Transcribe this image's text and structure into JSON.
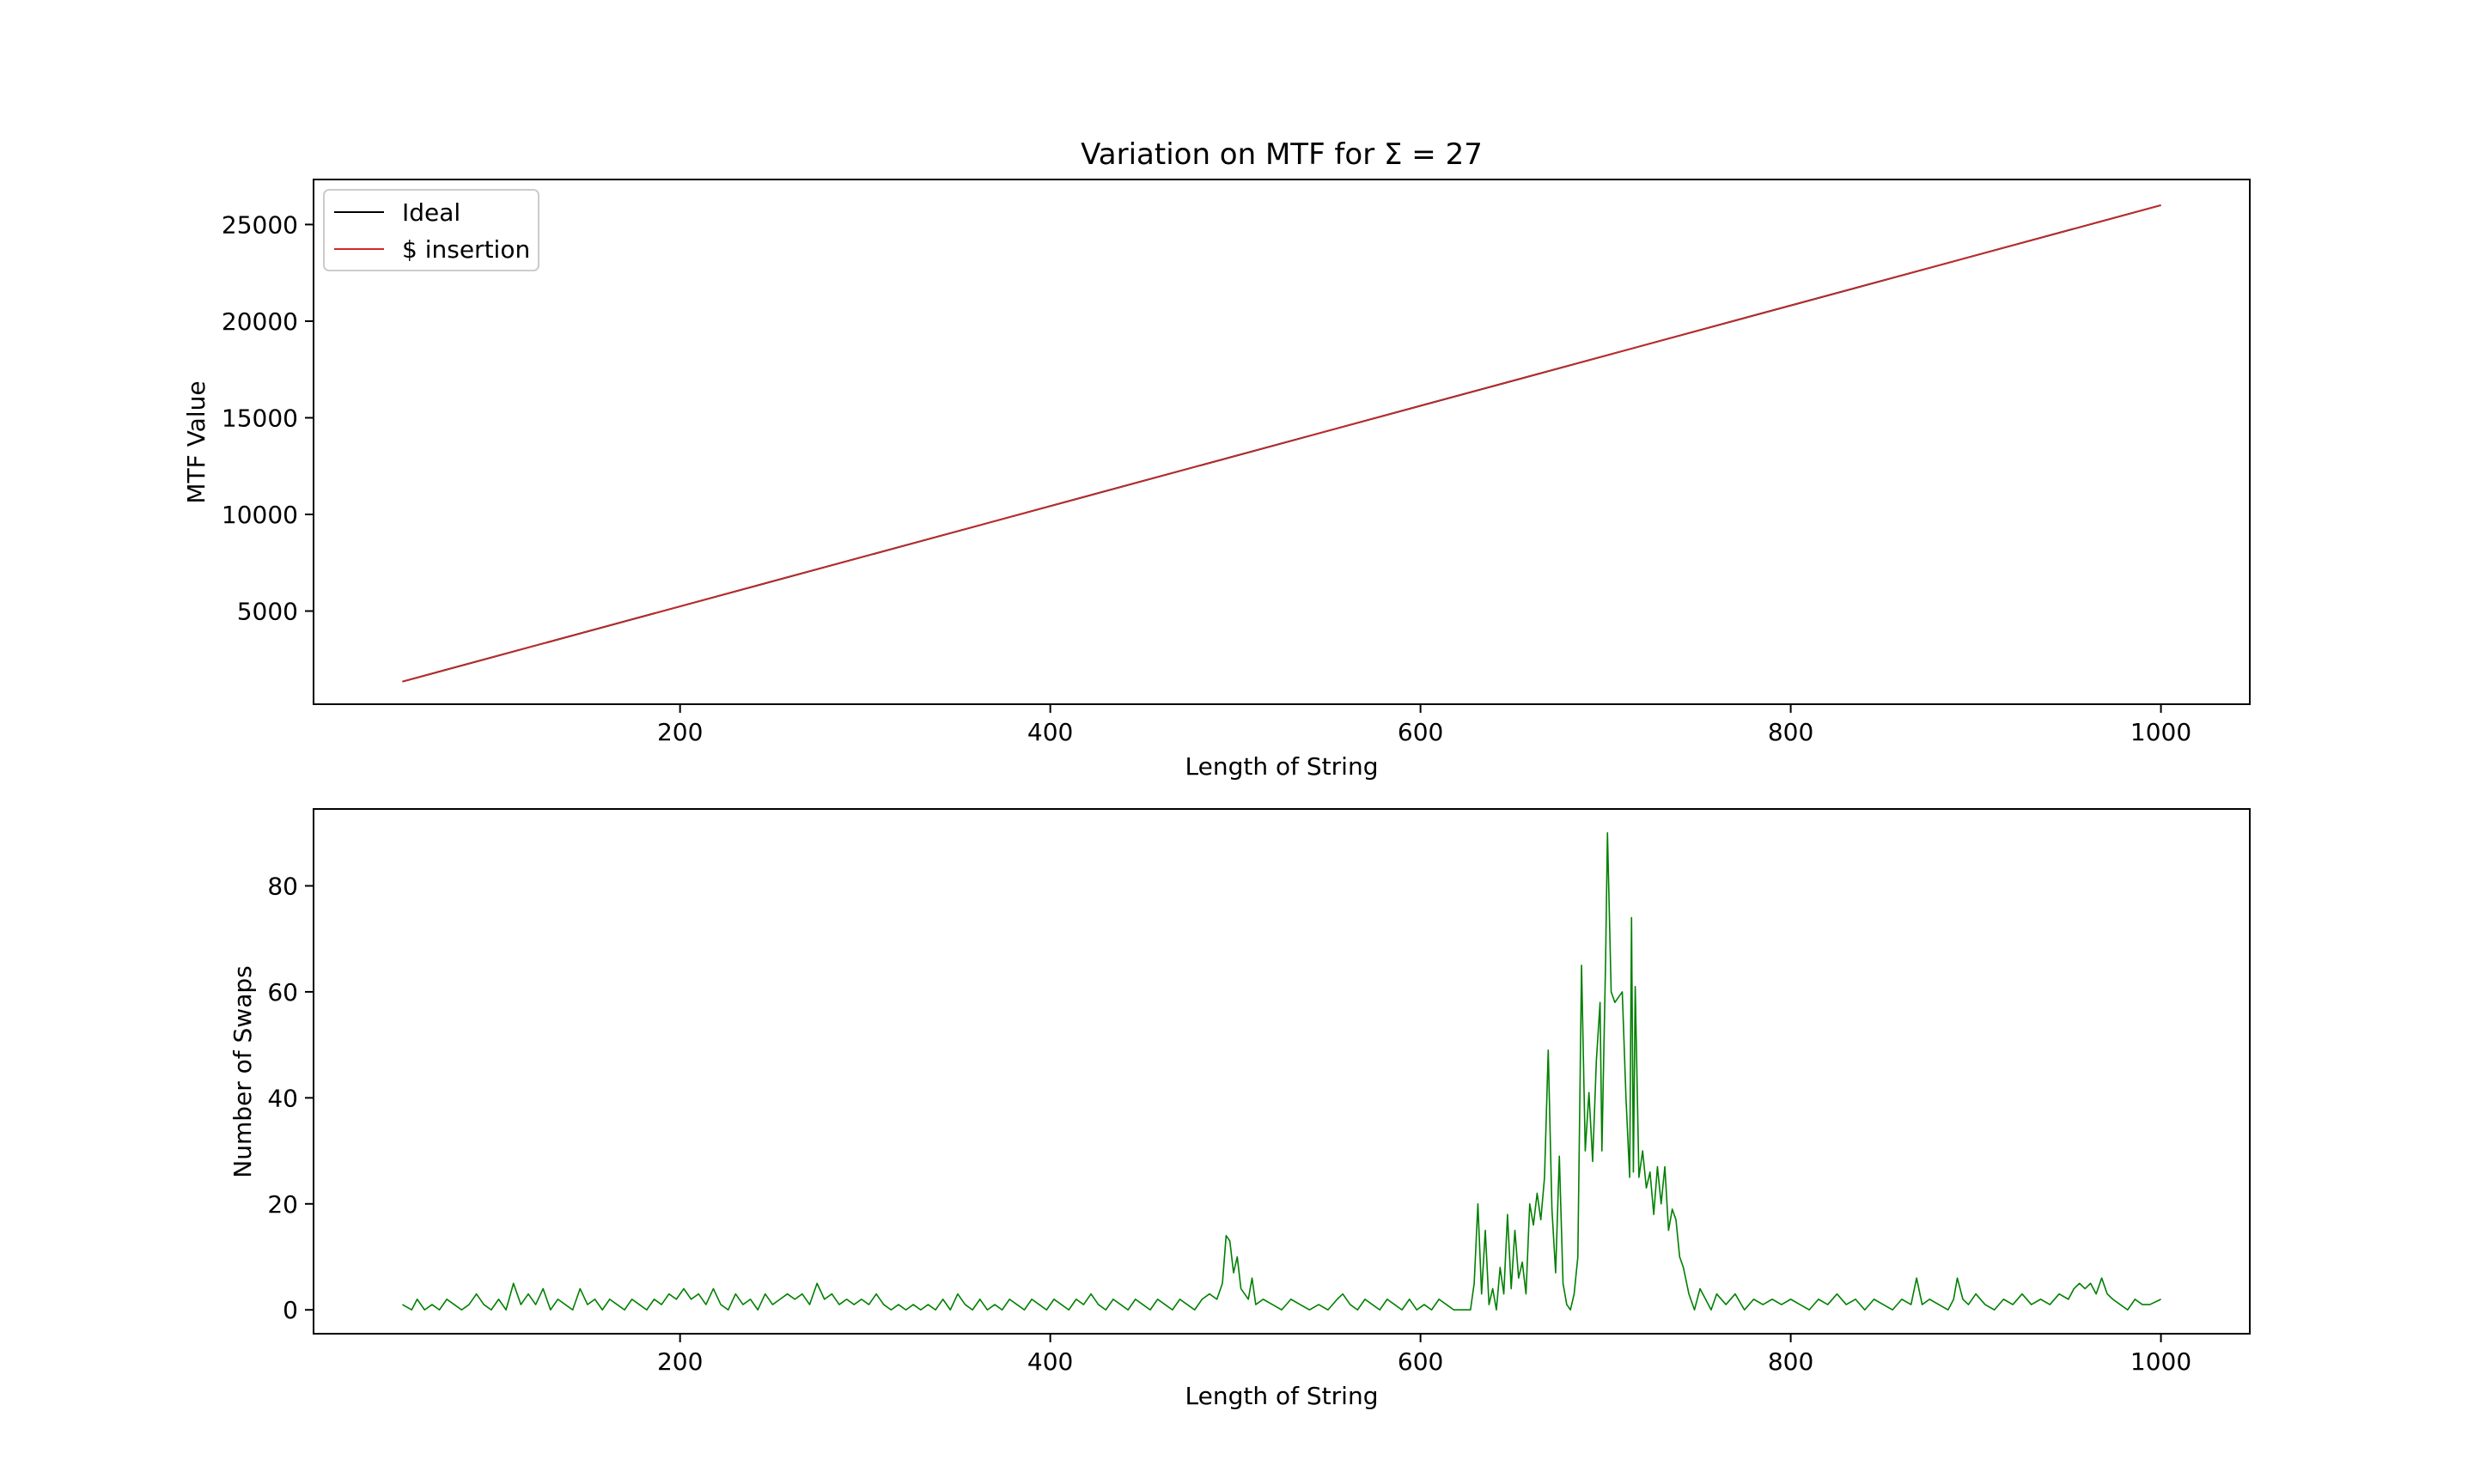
{
  "chart_data": [
    {
      "type": "line",
      "title": "Variation on MTF for Σ = 27",
      "xlabel": "Length of String",
      "ylabel": "MTF Value",
      "xlim": [
        2,
        1048
      ],
      "ylim": [
        180,
        27330
      ],
      "xticks": [
        200,
        400,
        600,
        800,
        1000
      ],
      "yticks": [
        5000,
        10000,
        15000,
        20000,
        25000
      ],
      "legend": "top-left",
      "series": [
        {
          "name": "Ideal",
          "color": "#000000",
          "x": [
            50,
            1000
          ],
          "y": [
            1350,
            26000
          ]
        },
        {
          "name": "$ insertion",
          "color": "#d62728",
          "x": [
            50,
            1000
          ],
          "y": [
            1350,
            26000
          ]
        }
      ]
    },
    {
      "type": "line",
      "title": "",
      "xlabel": "Length of String",
      "ylabel": "Number of Swaps",
      "xlim": [
        2,
        1048
      ],
      "ylim": [
        -4.5,
        94.5
      ],
      "xticks": [
        200,
        400,
        600,
        800,
        1000
      ],
      "yticks": [
        0,
        20,
        40,
        60,
        80
      ],
      "series": [
        {
          "name": "",
          "color": "#008000",
          "points": [
            [
              50,
              1
            ],
            [
              55,
              0
            ],
            [
              58,
              2
            ],
            [
              62,
              0
            ],
            [
              66,
              1
            ],
            [
              70,
              0
            ],
            [
              74,
              2
            ],
            [
              78,
              1
            ],
            [
              82,
              0
            ],
            [
              86,
              1
            ],
            [
              90,
              3
            ],
            [
              94,
              1
            ],
            [
              98,
              0
            ],
            [
              102,
              2
            ],
            [
              106,
              0
            ],
            [
              110,
              5
            ],
            [
              114,
              1
            ],
            [
              118,
              3
            ],
            [
              122,
              1
            ],
            [
              126,
              4
            ],
            [
              130,
              0
            ],
            [
              134,
              2
            ],
            [
              138,
              1
            ],
            [
              142,
              0
            ],
            [
              146,
              4
            ],
            [
              150,
              1
            ],
            [
              154,
              2
            ],
            [
              158,
              0
            ],
            [
              162,
              2
            ],
            [
              166,
              1
            ],
            [
              170,
              0
            ],
            [
              174,
              2
            ],
            [
              178,
              1
            ],
            [
              182,
              0
            ],
            [
              186,
              2
            ],
            [
              190,
              1
            ],
            [
              194,
              3
            ],
            [
              198,
              2
            ],
            [
              202,
              4
            ],
            [
              206,
              2
            ],
            [
              210,
              3
            ],
            [
              214,
              1
            ],
            [
              218,
              4
            ],
            [
              222,
              1
            ],
            [
              226,
              0
            ],
            [
              230,
              3
            ],
            [
              234,
              1
            ],
            [
              238,
              2
            ],
            [
              242,
              0
            ],
            [
              246,
              3
            ],
            [
              250,
              1
            ],
            [
              254,
              2
            ],
            [
              258,
              3
            ],
            [
              262,
              2
            ],
            [
              266,
              3
            ],
            [
              270,
              1
            ],
            [
              274,
              5
            ],
            [
              278,
              2
            ],
            [
              282,
              3
            ],
            [
              286,
              1
            ],
            [
              290,
              2
            ],
            [
              294,
              1
            ],
            [
              298,
              2
            ],
            [
              302,
              1
            ],
            [
              306,
              3
            ],
            [
              310,
              1
            ],
            [
              314,
              0
            ],
            [
              318,
              1
            ],
            [
              322,
              0
            ],
            [
              326,
              1
            ],
            [
              330,
              0
            ],
            [
              334,
              1
            ],
            [
              338,
              0
            ],
            [
              342,
              2
            ],
            [
              346,
              0
            ],
            [
              350,
              3
            ],
            [
              354,
              1
            ],
            [
              358,
              0
            ],
            [
              362,
              2
            ],
            [
              366,
              0
            ],
            [
              370,
              1
            ],
            [
              374,
              0
            ],
            [
              378,
              2
            ],
            [
              382,
              1
            ],
            [
              386,
              0
            ],
            [
              390,
              2
            ],
            [
              394,
              1
            ],
            [
              398,
              0
            ],
            [
              402,
              2
            ],
            [
              406,
              1
            ],
            [
              410,
              0
            ],
            [
              414,
              2
            ],
            [
              418,
              1
            ],
            [
              422,
              3
            ],
            [
              426,
              1
            ],
            [
              430,
              0
            ],
            [
              434,
              2
            ],
            [
              438,
              1
            ],
            [
              442,
              0
            ],
            [
              446,
              2
            ],
            [
              450,
              1
            ],
            [
              454,
              0
            ],
            [
              458,
              2
            ],
            [
              462,
              1
            ],
            [
              466,
              0
            ],
            [
              470,
              2
            ],
            [
              474,
              1
            ],
            [
              478,
              0
            ],
            [
              482,
              2
            ],
            [
              486,
              3
            ],
            [
              490,
              2
            ],
            [
              493,
              5
            ],
            [
              495,
              14
            ],
            [
              497,
              13
            ],
            [
              499,
              7
            ],
            [
              501,
              10
            ],
            [
              503,
              4
            ],
            [
              505,
              3
            ],
            [
              507,
              2
            ],
            [
              509,
              6
            ],
            [
              511,
              1
            ],
            [
              515,
              2
            ],
            [
              520,
              1
            ],
            [
              525,
              0
            ],
            [
              530,
              2
            ],
            [
              535,
              1
            ],
            [
              540,
              0
            ],
            [
              545,
              1
            ],
            [
              550,
              0
            ],
            [
              555,
              2
            ],
            [
              558,
              3
            ],
            [
              562,
              1
            ],
            [
              566,
              0
            ],
            [
              570,
              2
            ],
            [
              574,
              1
            ],
            [
              578,
              0
            ],
            [
              582,
              2
            ],
            [
              586,
              1
            ],
            [
              590,
              0
            ],
            [
              594,
              2
            ],
            [
              598,
              0
            ],
            [
              602,
              1
            ],
            [
              606,
              0
            ],
            [
              610,
              2
            ],
            [
              614,
              1
            ],
            [
              618,
              0
            ],
            [
              622,
              0
            ],
            [
              627,
              0
            ],
            [
              629,
              5
            ],
            [
              631,
              20
            ],
            [
              633,
              3
            ],
            [
              635,
              15
            ],
            [
              637,
              1
            ],
            [
              639,
              4
            ],
            [
              641,
              0
            ],
            [
              643,
              8
            ],
            [
              645,
              3
            ],
            [
              647,
              18
            ],
            [
              649,
              4
            ],
            [
              651,
              15
            ],
            [
              653,
              6
            ],
            [
              655,
              9
            ],
            [
              657,
              3
            ],
            [
              659,
              20
            ],
            [
              661,
              16
            ],
            [
              663,
              22
            ],
            [
              665,
              17
            ],
            [
              667,
              25
            ],
            [
              669,
              49
            ],
            [
              671,
              19
            ],
            [
              673,
              7
            ],
            [
              675,
              29
            ],
            [
              677,
              5
            ],
            [
              679,
              1
            ],
            [
              681,
              0
            ],
            [
              683,
              3
            ],
            [
              685,
              10
            ],
            [
              687,
              65
            ],
            [
              689,
              30
            ],
            [
              691,
              41
            ],
            [
              693,
              28
            ],
            [
              695,
              47
            ],
            [
              697,
              58
            ],
            [
              698,
              30
            ],
            [
              700,
              66
            ],
            [
              701,
              90
            ],
            [
              703,
              60
            ],
            [
              705,
              58
            ],
            [
              707,
              59
            ],
            [
              709,
              60
            ],
            [
              711,
              40
            ],
            [
              713,
              25
            ],
            [
              714,
              74
            ],
            [
              715,
              26
            ],
            [
              716,
              61
            ],
            [
              718,
              25
            ],
            [
              720,
              30
            ],
            [
              722,
              23
            ],
            [
              724,
              26
            ],
            [
              726,
              18
            ],
            [
              728,
              27
            ],
            [
              730,
              20
            ],
            [
              732,
              27
            ],
            [
              734,
              15
            ],
            [
              736,
              19
            ],
            [
              738,
              17
            ],
            [
              740,
              10
            ],
            [
              742,
              8
            ],
            [
              745,
              3
            ],
            [
              748,
              0
            ],
            [
              751,
              4
            ],
            [
              754,
              2
            ],
            [
              757,
              0
            ],
            [
              760,
              3
            ],
            [
              765,
              1
            ],
            [
              770,
              3
            ],
            [
              775,
              0
            ],
            [
              780,
              2
            ],
            [
              785,
              1
            ],
            [
              790,
              2
            ],
            [
              795,
              1
            ],
            [
              800,
              2
            ],
            [
              805,
              1
            ],
            [
              810,
              0
            ],
            [
              815,
              2
            ],
            [
              820,
              1
            ],
            [
              825,
              3
            ],
            [
              830,
              1
            ],
            [
              835,
              2
            ],
            [
              840,
              0
            ],
            [
              845,
              2
            ],
            [
              850,
              1
            ],
            [
              855,
              0
            ],
            [
              860,
              2
            ],
            [
              865,
              1
            ],
            [
              868,
              6
            ],
            [
              871,
              1
            ],
            [
              875,
              2
            ],
            [
              880,
              1
            ],
            [
              885,
              0
            ],
            [
              888,
              2
            ],
            [
              890,
              6
            ],
            [
              893,
              2
            ],
            [
              896,
              1
            ],
            [
              900,
              3
            ],
            [
              905,
              1
            ],
            [
              910,
              0
            ],
            [
              915,
              2
            ],
            [
              920,
              1
            ],
            [
              925,
              3
            ],
            [
              930,
              1
            ],
            [
              935,
              2
            ],
            [
              940,
              1
            ],
            [
              945,
              3
            ],
            [
              950,
              2
            ],
            [
              953,
              4
            ],
            [
              956,
              5
            ],
            [
              959,
              4
            ],
            [
              962,
              5
            ],
            [
              965,
              3
            ],
            [
              968,
              6
            ],
            [
              971,
              3
            ],
            [
              974,
              2
            ],
            [
              978,
              1
            ],
            [
              982,
              0
            ],
            [
              986,
              2
            ],
            [
              990,
              1
            ],
            [
              994,
              1
            ],
            [
              1000,
              2
            ]
          ]
        }
      ]
    }
  ]
}
